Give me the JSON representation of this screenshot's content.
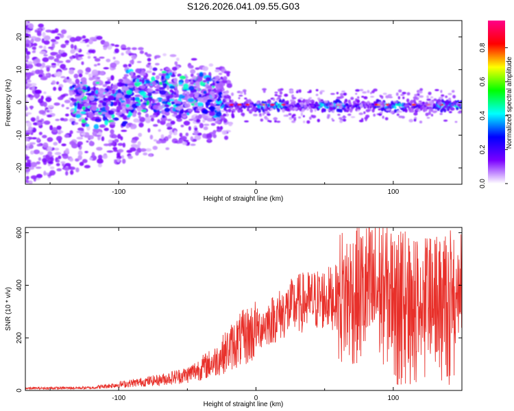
{
  "title": "S126.2026.041.09.55.G03",
  "chart_data": [
    {
      "type": "heatmap",
      "xlabel": "Height of straight line (km)",
      "ylabel": "Frequency (Hz)",
      "xlim": [
        -168,
        150
      ],
      "ylim": [
        -25,
        25
      ],
      "x_ticks": [
        -100,
        0,
        100
      ],
      "x_tick_labels": [
        "-100",
        "0",
        "100"
      ],
      "y_ticks": [
        -20,
        -10,
        0,
        10,
        20
      ],
      "y_tick_labels": [
        "-20",
        "-10",
        "0",
        "10",
        "20"
      ],
      "colorbar": {
        "label": "Normalized spectral amplitude",
        "range": [
          0,
          0.96
        ],
        "ticks": [
          0.0,
          0.2,
          0.4,
          0.6,
          0.8
        ],
        "tick_labels": [
          "0.0",
          "0.2",
          "0.4",
          "0.6",
          "0.8"
        ],
        "colors": [
          "#ffffff",
          "#7a00ff",
          "#0000ff",
          "#00ffff",
          "#00ff00",
          "#ffff00",
          "#ff0000",
          "#ff0088"
        ]
      },
      "description_band": {
        "ridge_frequency_hz": -1,
        "ridge_start_km": -25,
        "ridge_end_km": 150,
        "noisy_region_end_km": -25
      }
    },
    {
      "type": "line",
      "xlabel": "Height of straight line (km)",
      "ylabel": "SNR (10 * v/v)",
      "xlim": [
        -168,
        150
      ],
      "ylim": [
        0,
        620
      ],
      "x_ticks": [
        -100,
        0,
        100
      ],
      "x_tick_labels": [
        "-100",
        "0",
        "100"
      ],
      "y_ticks": [
        0,
        200,
        400,
        600
      ],
      "y_tick_labels": [
        "0",
        "200",
        "400",
        "600"
      ],
      "color": "#e8302a",
      "trend": [
        {
          "x": -168,
          "y": 8
        },
        {
          "x": -120,
          "y": 10
        },
        {
          "x": -95,
          "y": 25
        },
        {
          "x": -70,
          "y": 40
        },
        {
          "x": -50,
          "y": 60
        },
        {
          "x": -30,
          "y": 110
        },
        {
          "x": -15,
          "y": 180
        },
        {
          "x": 0,
          "y": 230
        },
        {
          "x": 15,
          "y": 280
        },
        {
          "x": 30,
          "y": 330
        },
        {
          "x": 50,
          "y": 350
        },
        {
          "x": 70,
          "y": 360
        },
        {
          "x": 90,
          "y": 380
        },
        {
          "x": 110,
          "y": 340
        },
        {
          "x": 130,
          "y": 330
        },
        {
          "x": 150,
          "y": 320
        }
      ]
    }
  ]
}
